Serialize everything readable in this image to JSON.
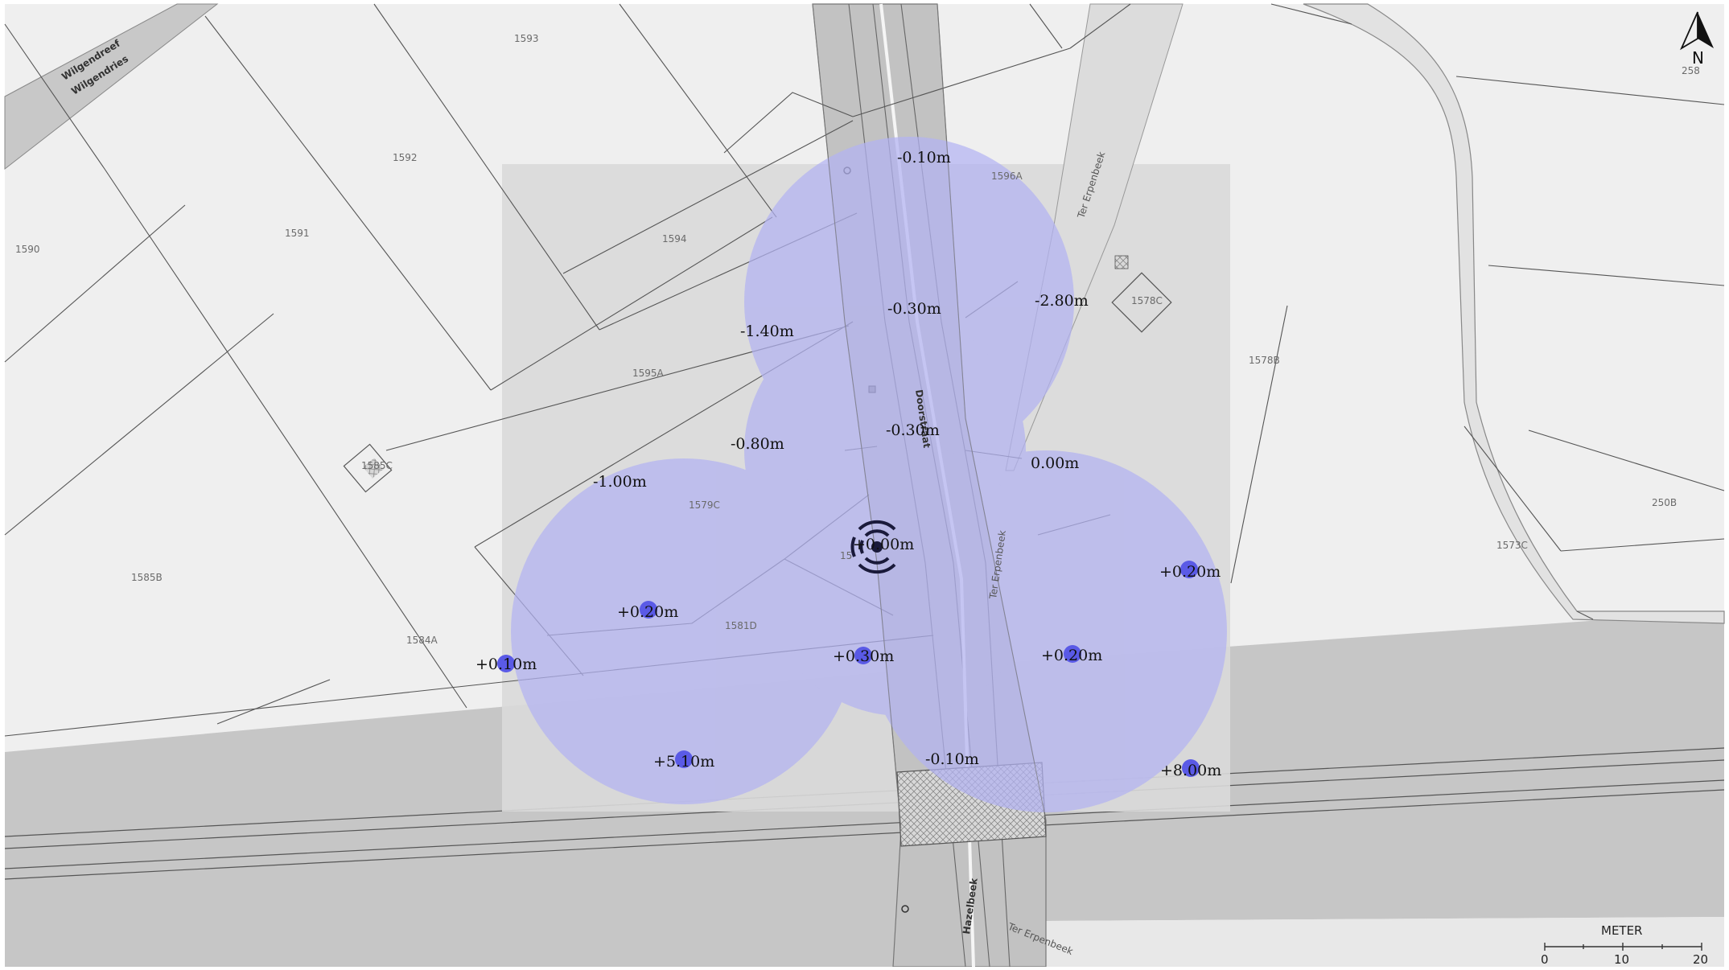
{
  "parcels": [
    "1593",
    "1592",
    "1591",
    "1590",
    "1594",
    "1596A",
    "1595A",
    "1585C",
    "1579C",
    "1585B",
    "1584A",
    "1581D",
    "1578C",
    "1578B",
    "250B",
    "1573C",
    "258"
  ],
  "streets": {
    "wilgendreef": "Wilgendreef",
    "wilgendries": "Wilgendries",
    "doorstraat": "Doorstraat",
    "ter_erpenbeek_top": "Ter Erpenbeek",
    "ter_erpenbeek_mid": "Ter Erpenbeek",
    "ter_erpenbeek_bottom": "Ter Erpenbeek",
    "hazelbeek": "Hazelbeek"
  },
  "elevations": [
    "-0.10m",
    "-0.30m",
    "-2.80m",
    "-1.40m",
    "-0.80m",
    "-0.30m",
    "0.00m",
    "-1.00m",
    "+0.00m",
    "+0.20m",
    "+0.20m",
    "+0.10m",
    "+0.30m",
    "+0.20m",
    "+5.10m",
    "-0.10m",
    "+8.00m"
  ],
  "center_parcel": "15",
  "compass": {
    "letter": "N",
    "icon": "north-arrow-icon"
  },
  "scale": {
    "title": "METER",
    "ticks": [
      "0",
      "10",
      "20"
    ]
  },
  "colors": {
    "coverage": "#b3b3f2",
    "marker": "#5a5ae6",
    "highlight_square": "#d9d9d9"
  }
}
